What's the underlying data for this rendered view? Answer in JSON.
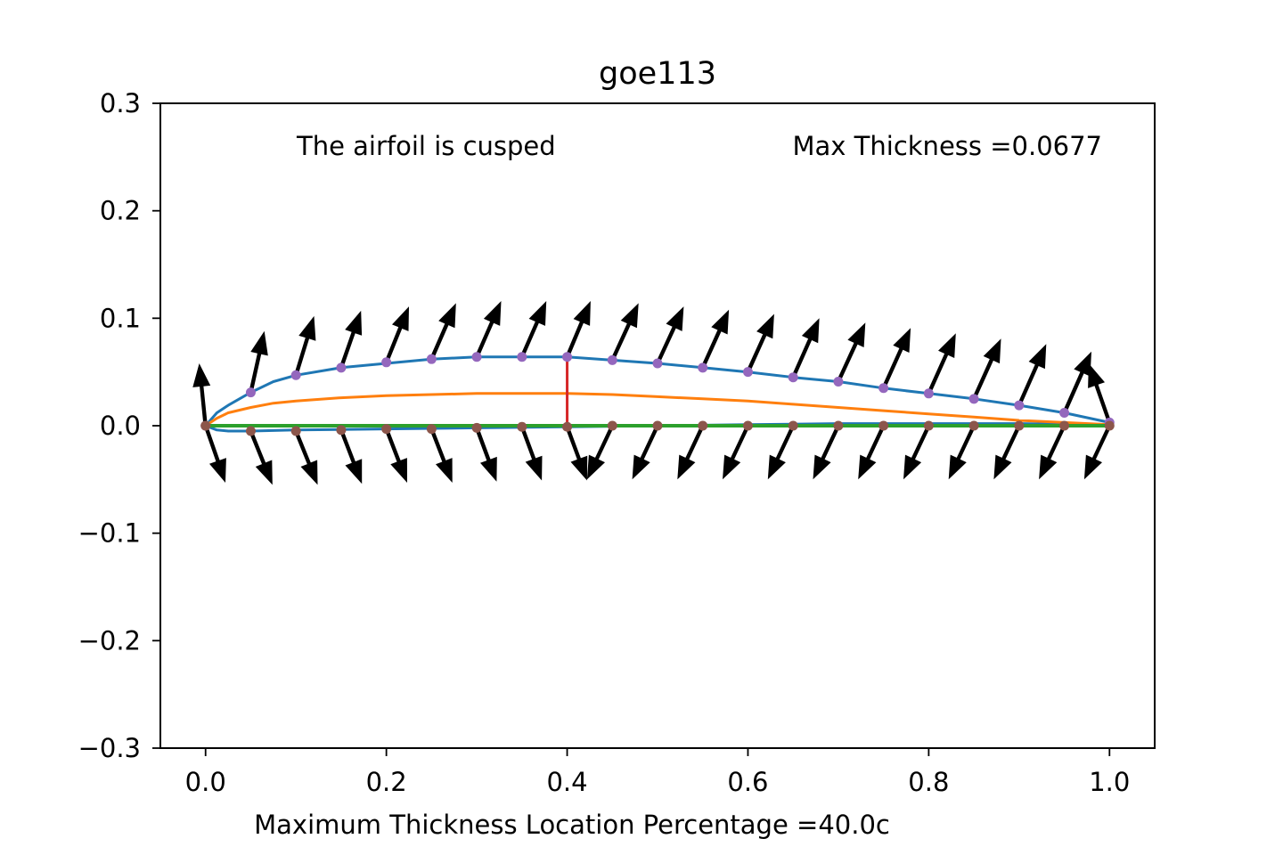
{
  "chart_data": {
    "type": "line",
    "title": "goe113",
    "xlabel": "Maximum Thickness Location Percentage =40.0c",
    "ylabel": "",
    "xlim": [
      -0.05,
      1.05
    ],
    "ylim": [
      -0.3,
      0.3
    ],
    "xticks": [
      0.0,
      0.2,
      0.4,
      0.6,
      0.8,
      1.0
    ],
    "xtick_labels": [
      "0.0",
      "0.2",
      "0.4",
      "0.6",
      "0.8",
      "1.0"
    ],
    "yticks": [
      -0.3,
      -0.2,
      -0.1,
      0.0,
      0.1,
      0.2,
      0.3
    ],
    "ytick_labels": [
      "−0.3",
      "−0.2",
      "−0.1",
      "0.0",
      "0.1",
      "0.2",
      "0.3"
    ],
    "grid": false,
    "annotations": {
      "cusped": "The airfoil is cusped",
      "max_thickness": "Max Thickness =0.0677"
    },
    "max_thickness_line": {
      "x": 0.4,
      "y_from": -0.004,
      "y_to": 0.064,
      "color": "#d62728"
    },
    "series": [
      {
        "color": "#1f77b4",
        "x": [
          1.0,
          0.95,
          0.9,
          0.85,
          0.8,
          0.75,
          0.7,
          0.65,
          0.6,
          0.55,
          0.5,
          0.45,
          0.4,
          0.35,
          0.3,
          0.25,
          0.2,
          0.15,
          0.1,
          0.075,
          0.05,
          0.025,
          0.0125,
          0.0,
          0.0125,
          0.025,
          0.05,
          0.1,
          0.2,
          0.3,
          0.4,
          0.5,
          0.6,
          0.7,
          0.8,
          0.9,
          1.0
        ],
        "y": [
          0.003,
          0.012,
          0.019,
          0.025,
          0.03,
          0.035,
          0.041,
          0.045,
          0.05,
          0.054,
          0.058,
          0.061,
          0.064,
          0.064,
          0.064,
          0.062,
          0.058,
          0.054,
          0.047,
          0.041,
          0.031,
          0.019,
          0.012,
          0.0,
          -0.004,
          -0.005,
          -0.005,
          -0.004,
          -0.003,
          -0.002,
          -0.001,
          0.0,
          0.001,
          0.002,
          0.002,
          0.002,
          0.001
        ]
      },
      {
        "color": "#ff7f0e",
        "x": [
          0.0,
          0.0125,
          0.025,
          0.05,
          0.075,
          0.1,
          0.15,
          0.2,
          0.25,
          0.3,
          0.35,
          0.4,
          0.45,
          0.5,
          0.55,
          0.6,
          0.65,
          0.7,
          0.75,
          0.8,
          0.85,
          0.9,
          0.95,
          1.0
        ],
        "y": [
          0.0,
          0.007,
          0.012,
          0.017,
          0.021,
          0.023,
          0.026,
          0.028,
          0.029,
          0.03,
          0.03,
          0.03,
          0.029,
          0.027,
          0.025,
          0.023,
          0.02,
          0.017,
          0.014,
          0.011,
          0.008,
          0.005,
          0.003,
          0.001
        ]
      },
      {
        "color": "#2ca02c",
        "x": [
          0.0,
          0.25,
          0.5,
          0.75,
          1.0
        ],
        "y": [
          0.0,
          0.0,
          0.0,
          0.0,
          0.0
        ]
      }
    ],
    "upper_points": {
      "color": "#9467bd",
      "x": [
        0.0,
        0.05,
        0.1,
        0.15,
        0.2,
        0.25,
        0.3,
        0.35,
        0.4,
        0.45,
        0.5,
        0.55,
        0.6,
        0.65,
        0.7,
        0.75,
        0.8,
        0.85,
        0.9,
        0.95,
        1.0
      ],
      "y": [
        0.0,
        0.031,
        0.047,
        0.054,
        0.059,
        0.062,
        0.064,
        0.064,
        0.064,
        0.061,
        0.058,
        0.054,
        0.05,
        0.045,
        0.041,
        0.035,
        0.03,
        0.025,
        0.019,
        0.012,
        0.003
      ]
    },
    "lower_points": {
      "color": "#8c564b",
      "x": [
        0.0,
        0.05,
        0.1,
        0.15,
        0.2,
        0.25,
        0.3,
        0.35,
        0.4,
        0.45,
        0.5,
        0.55,
        0.6,
        0.65,
        0.7,
        0.75,
        0.8,
        0.85,
        0.9,
        0.95,
        1.0
      ],
      "y": [
        0.0,
        -0.005,
        -0.005,
        -0.004,
        -0.003,
        -0.003,
        -0.002,
        -0.001,
        -0.001,
        0.0,
        0.0,
        0.0,
        0.0,
        0.0,
        0.0,
        0.0,
        0.0,
        0.0,
        0.0,
        0.0,
        0.0
      ]
    },
    "upper_normals": {
      "color": "#000000",
      "base_x": [
        0.0,
        0.05,
        0.1,
        0.15,
        0.2,
        0.25,
        0.3,
        0.35,
        0.4,
        0.45,
        0.5,
        0.55,
        0.6,
        0.65,
        0.7,
        0.75,
        0.8,
        0.85,
        0.9,
        0.95,
        1.0
      ],
      "tip_x": [
        -0.007,
        0.065,
        0.12,
        0.172,
        0.225,
        0.277,
        0.327,
        0.377,
        0.426,
        0.479,
        0.529,
        0.579,
        0.629,
        0.679,
        0.73,
        0.78,
        0.83,
        0.88,
        0.93,
        0.98,
        0.977
      ],
      "tip_y": [
        0.058,
        0.088,
        0.102,
        0.107,
        0.111,
        0.114,
        0.116,
        0.116,
        0.116,
        0.114,
        0.111,
        0.108,
        0.104,
        0.1,
        0.096,
        0.091,
        0.086,
        0.081,
        0.076,
        0.069,
        0.058
      ]
    },
    "lower_normals": {
      "color": "#000000",
      "base_x": [
        0.0,
        0.05,
        0.1,
        0.15,
        0.2,
        0.25,
        0.3,
        0.35,
        0.4,
        0.45,
        0.5,
        0.55,
        0.6,
        0.65,
        0.7,
        0.75,
        0.8,
        0.85,
        0.9,
        0.95,
        1.0
      ],
      "tip_x": [
        0.022,
        0.074,
        0.124,
        0.173,
        0.223,
        0.273,
        0.322,
        0.372,
        0.422,
        0.422,
        0.472,
        0.522,
        0.572,
        0.622,
        0.672,
        0.722,
        0.772,
        0.822,
        0.872,
        0.922,
        0.972
      ],
      "tip_y": [
        -0.053,
        -0.055,
        -0.055,
        -0.054,
        -0.053,
        -0.053,
        -0.052,
        -0.051,
        -0.051,
        -0.05,
        -0.05,
        -0.05,
        -0.05,
        -0.05,
        -0.05,
        -0.05,
        -0.05,
        -0.05,
        -0.05,
        -0.05,
        -0.05
      ]
    }
  }
}
